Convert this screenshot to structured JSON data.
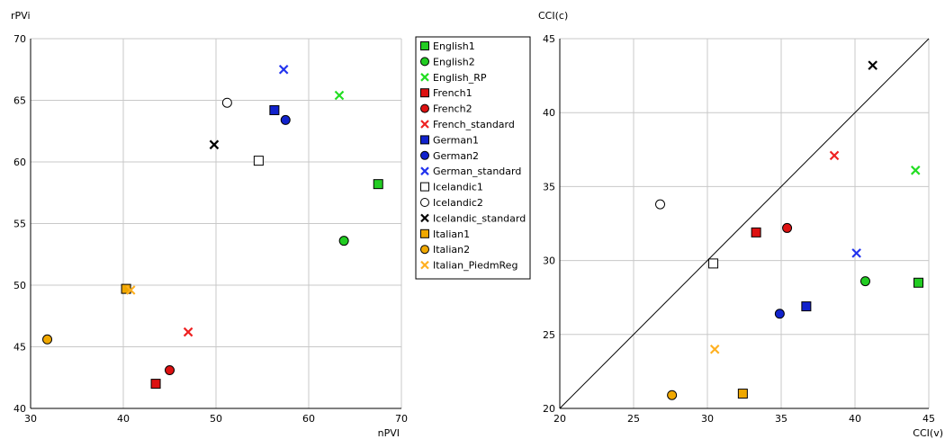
{
  "legend": {
    "placement": "between-charts",
    "entries": [
      {
        "name": "English1",
        "color": "#22cc22",
        "marker": "square"
      },
      {
        "name": "English2",
        "color": "#22cc22",
        "marker": "circle"
      },
      {
        "name": "English_RP",
        "color": "#22dd22",
        "marker": "x"
      },
      {
        "name": "French1",
        "color": "#dd1111",
        "marker": "square"
      },
      {
        "name": "French2",
        "color": "#dd1111",
        "marker": "circle"
      },
      {
        "name": "French_standard",
        "color": "#ee2222",
        "marker": "x"
      },
      {
        "name": "German1",
        "color": "#1122cc",
        "marker": "square"
      },
      {
        "name": "German2",
        "color": "#1122cc",
        "marker": "circle"
      },
      {
        "name": "German_standard",
        "color": "#2233ee",
        "marker": "x"
      },
      {
        "name": "Icelandic1",
        "color": "#ffffff",
        "marker": "square"
      },
      {
        "name": "Icelandic2",
        "color": "#ffffff",
        "marker": "circle"
      },
      {
        "name": "Icelandic_standard",
        "color": "#000000",
        "marker": "x"
      },
      {
        "name": "Italian1",
        "color": "#f0a800",
        "marker": "square"
      },
      {
        "name": "Italian2",
        "color": "#f0a800",
        "marker": "circle"
      },
      {
        "name": "Italian_PiedmReg",
        "color": "#ffb020",
        "marker": "x"
      }
    ]
  },
  "chart_data": [
    {
      "type": "scatter",
      "xlabel": "nPVI",
      "ylabel": "rPVi",
      "xlim": [
        30,
        70
      ],
      "ylim": [
        40,
        70
      ],
      "xticks": [
        30,
        40,
        50,
        60,
        70
      ],
      "yticks": [
        40,
        45,
        50,
        55,
        60,
        65,
        70
      ],
      "grid": true,
      "diagonal": false,
      "points": [
        {
          "series": "English1",
          "x": 67.5,
          "y": 58.2
        },
        {
          "series": "English2",
          "x": 63.8,
          "y": 53.6
        },
        {
          "series": "English_RP",
          "x": 63.3,
          "y": 65.4
        },
        {
          "series": "French1",
          "x": 43.5,
          "y": 42.0
        },
        {
          "series": "French2",
          "x": 45.0,
          "y": 43.1
        },
        {
          "series": "French_standard",
          "x": 47.0,
          "y": 46.2
        },
        {
          "series": "German1",
          "x": 56.3,
          "y": 64.2
        },
        {
          "series": "German2",
          "x": 57.5,
          "y": 63.4
        },
        {
          "series": "German_standard",
          "x": 57.3,
          "y": 67.5
        },
        {
          "series": "Icelandic1",
          "x": 54.6,
          "y": 60.1
        },
        {
          "series": "Icelandic2",
          "x": 51.2,
          "y": 64.8
        },
        {
          "series": "Icelandic_standard",
          "x": 49.8,
          "y": 61.4
        },
        {
          "series": "Italian1",
          "x": 40.3,
          "y": 49.7
        },
        {
          "series": "Italian2",
          "x": 31.8,
          "y": 45.6
        },
        {
          "series": "Italian_PiedmReg",
          "x": 40.8,
          "y": 49.6
        }
      ]
    },
    {
      "type": "scatter",
      "xlabel": "CCI(v)",
      "ylabel": "CCI(c)",
      "xlim": [
        20,
        45
      ],
      "ylim": [
        20,
        45
      ],
      "xticks": [
        20,
        25,
        30,
        35,
        40,
        45
      ],
      "yticks": [
        20,
        25,
        30,
        35,
        40,
        45
      ],
      "grid": true,
      "diagonal": true,
      "points": [
        {
          "series": "English1",
          "x": 44.3,
          "y": 28.5
        },
        {
          "series": "English2",
          "x": 40.7,
          "y": 28.6
        },
        {
          "series": "English_RP",
          "x": 44.1,
          "y": 36.1
        },
        {
          "series": "French1",
          "x": 33.3,
          "y": 31.9
        },
        {
          "series": "French2",
          "x": 35.4,
          "y": 32.2
        },
        {
          "series": "French_standard",
          "x": 38.6,
          "y": 37.1
        },
        {
          "series": "German1",
          "x": 36.7,
          "y": 26.9
        },
        {
          "series": "German2",
          "x": 34.9,
          "y": 26.4
        },
        {
          "series": "German_standard",
          "x": 40.1,
          "y": 30.5
        },
        {
          "series": "Icelandic1",
          "x": 30.4,
          "y": 29.8
        },
        {
          "series": "Icelandic2",
          "x": 26.8,
          "y": 33.8
        },
        {
          "series": "Icelandic_standard",
          "x": 41.2,
          "y": 43.2
        },
        {
          "series": "Italian1",
          "x": 32.4,
          "y": 21.0
        },
        {
          "series": "Italian2",
          "x": 27.6,
          "y": 20.9
        },
        {
          "series": "Italian_PiedmReg",
          "x": 30.5,
          "y": 24.0
        }
      ]
    }
  ]
}
